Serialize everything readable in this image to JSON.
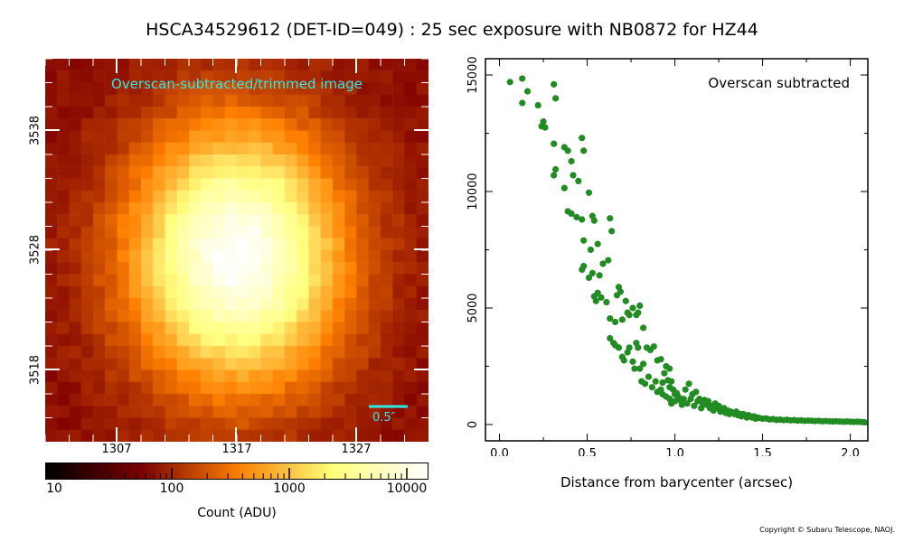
{
  "title": "HSCA34529612 (DET-ID=049) :  25 sec exposure with NB0872 for HZ44",
  "copyright": "Copyright © Subaru Telescope, NAOJ.",
  "image_panel": {
    "label": "Overscan-subtracted/trimmed image",
    "x_ticks": [
      "1307",
      "1317",
      "1327"
    ],
    "y_ticks": [
      "3538",
      "3528",
      "3518"
    ],
    "scale_bar_label": "0.5″",
    "accent_color": "#2fe8e8"
  },
  "colorbar": {
    "labels": [
      "10",
      "100",
      "1000",
      "10000"
    ],
    "title": "Count (ADU)",
    "scale": "log"
  },
  "chart_data": {
    "type": "scatter",
    "annotation": "Overscan subtracted",
    "xlabel": "Distance from barycenter (arcsec)",
    "ylabel": "",
    "xlim": [
      -0.08,
      2.1
    ],
    "ylim": [
      -700,
      15700
    ],
    "x_ticks": [
      0.0,
      0.5,
      1.0,
      1.5,
      2.0
    ],
    "x_tick_labels": [
      "0.0",
      "0.5",
      "1.0",
      "1.5",
      "2.0"
    ],
    "y_ticks": [
      0,
      5000,
      10000,
      15000
    ],
    "y_tick_labels": [
      "0",
      "5000",
      "10000",
      "15000"
    ],
    "point_color": "#228b22",
    "points": [
      [
        0.06,
        14700
      ],
      [
        0.13,
        14850
      ],
      [
        0.13,
        13800
      ],
      [
        0.16,
        14300
      ],
      [
        0.22,
        13700
      ],
      [
        0.24,
        12800
      ],
      [
        0.25,
        13000
      ],
      [
        0.26,
        12750
      ],
      [
        0.31,
        14600
      ],
      [
        0.32,
        14000
      ],
      [
        0.31,
        12050
      ],
      [
        0.31,
        10700
      ],
      [
        0.32,
        10950
      ],
      [
        0.37,
        10150
      ],
      [
        0.37,
        11900
      ],
      [
        0.39,
        11750
      ],
      [
        0.41,
        11300
      ],
      [
        0.42,
        10700
      ],
      [
        0.45,
        10450
      ],
      [
        0.47,
        12300
      ],
      [
        0.48,
        11750
      ],
      [
        0.51,
        9950
      ],
      [
        0.39,
        9150
      ],
      [
        0.41,
        9050
      ],
      [
        0.44,
        8900
      ],
      [
        0.47,
        8800
      ],
      [
        0.48,
        7900
      ],
      [
        0.53,
        8950
      ],
      [
        0.54,
        8750
      ],
      [
        0.56,
        7750
      ],
      [
        0.52,
        7500
      ],
      [
        0.47,
        6650
      ],
      [
        0.48,
        6800
      ],
      [
        0.51,
        6300
      ],
      [
        0.53,
        6500
      ],
      [
        0.57,
        6400
      ],
      [
        0.59,
        6900
      ],
      [
        0.62,
        7050
      ],
      [
        0.63,
        8850
      ],
      [
        0.64,
        8300
      ],
      [
        0.54,
        5500
      ],
      [
        0.55,
        5300
      ],
      [
        0.56,
        5650
      ],
      [
        0.58,
        5450
      ],
      [
        0.61,
        5250
      ],
      [
        0.63,
        4550
      ],
      [
        0.66,
        4400
      ],
      [
        0.67,
        5550
      ],
      [
        0.68,
        5900
      ],
      [
        0.69,
        5700
      ],
      [
        0.7,
        4500
      ],
      [
        0.72,
        5300
      ],
      [
        0.73,
        4800
      ],
      [
        0.74,
        4700
      ],
      [
        0.76,
        5000
      ],
      [
        0.78,
        4700
      ],
      [
        0.8,
        5100
      ],
      [
        0.82,
        4150
      ],
      [
        0.79,
        4800
      ],
      [
        0.63,
        3700
      ],
      [
        0.65,
        3500
      ],
      [
        0.66,
        3400
      ],
      [
        0.68,
        3300
      ],
      [
        0.7,
        2900
      ],
      [
        0.71,
        2750
      ],
      [
        0.73,
        3100
      ],
      [
        0.74,
        3300
      ],
      [
        0.76,
        2700
      ],
      [
        0.78,
        3500
      ],
      [
        0.79,
        3300
      ],
      [
        0.8,
        2400
      ],
      [
        0.82,
        2600
      ],
      [
        0.84,
        3300
      ],
      [
        0.86,
        3200
      ],
      [
        0.88,
        3350
      ],
      [
        0.9,
        2750
      ],
      [
        0.92,
        2800
      ],
      [
        0.95,
        2500
      ],
      [
        0.97,
        2400
      ],
      [
        0.77,
        2400
      ],
      [
        0.81,
        1850
      ],
      [
        0.83,
        1750
      ],
      [
        0.85,
        2050
      ],
      [
        0.87,
        1600
      ],
      [
        0.89,
        1850
      ],
      [
        0.9,
        1400
      ],
      [
        0.92,
        1500
      ],
      [
        0.93,
        1800
      ],
      [
        0.94,
        2200
      ],
      [
        0.96,
        1900
      ],
      [
        0.97,
        1600
      ],
      [
        0.98,
        1850
      ],
      [
        0.99,
        1500
      ],
      [
        1.0,
        1300
      ],
      [
        0.93,
        1300
      ],
      [
        0.95,
        1200
      ],
      [
        0.97,
        1100
      ],
      [
        0.98,
        900
      ],
      [
        1.0,
        1000
      ],
      [
        1.01,
        1350
      ],
      [
        1.02,
        1200
      ],
      [
        1.03,
        1050
      ],
      [
        1.04,
        850
      ],
      [
        1.05,
        1100
      ],
      [
        1.06,
        1500
      ],
      [
        1.07,
        900
      ],
      [
        1.08,
        1750
      ],
      [
        1.09,
        1100
      ],
      [
        1.1,
        1300
      ],
      [
        1.11,
        800
      ],
      [
        1.12,
        1400
      ],
      [
        1.13,
        1000
      ],
      [
        1.14,
        1100
      ],
      [
        1.15,
        700
      ],
      [
        1.16,
        900
      ],
      [
        1.17,
        1050
      ],
      [
        1.18,
        850
      ],
      [
        1.19,
        1000
      ],
      [
        1.2,
        700
      ],
      [
        1.21,
        800
      ],
      [
        1.22,
        600
      ],
      [
        1.23,
        900
      ],
      [
        1.24,
        700
      ],
      [
        1.25,
        800
      ],
      [
        1.26,
        550
      ],
      [
        1.27,
        650
      ],
      [
        1.28,
        700
      ],
      [
        1.29,
        500
      ],
      [
        1.3,
        600
      ],
      [
        1.31,
        450
      ],
      [
        1.32,
        550
      ],
      [
        1.33,
        500
      ],
      [
        1.34,
        450
      ],
      [
        1.35,
        550
      ],
      [
        1.36,
        400
      ],
      [
        1.37,
        450
      ],
      [
        1.38,
        350
      ],
      [
        1.39,
        450
      ],
      [
        1.4,
        400
      ],
      [
        1.41,
        300
      ],
      [
        1.42,
        400
      ],
      [
        1.43,
        350
      ],
      [
        1.44,
        300
      ],
      [
        1.45,
        350
      ],
      [
        1.46,
        250
      ],
      [
        1.47,
        300
      ],
      [
        1.48,
        280
      ],
      [
        1.5,
        250
      ],
      [
        1.52,
        260
      ],
      [
        1.54,
        220
      ],
      [
        1.56,
        230
      ],
      [
        1.58,
        200
      ],
      [
        1.6,
        210
      ],
      [
        1.62,
        190
      ],
      [
        1.64,
        200
      ],
      [
        1.66,
        180
      ],
      [
        1.68,
        190
      ],
      [
        1.7,
        170
      ],
      [
        1.72,
        180
      ],
      [
        1.74,
        160
      ],
      [
        1.76,
        170
      ],
      [
        1.78,
        160
      ],
      [
        1.8,
        150
      ],
      [
        1.82,
        160
      ],
      [
        1.84,
        140
      ],
      [
        1.86,
        150
      ],
      [
        1.88,
        140
      ],
      [
        1.9,
        130
      ],
      [
        1.92,
        140
      ],
      [
        1.94,
        130
      ],
      [
        1.96,
        120
      ],
      [
        1.98,
        130
      ],
      [
        2.0,
        120
      ],
      [
        2.02,
        110
      ],
      [
        2.04,
        120
      ],
      [
        2.06,
        110
      ],
      [
        2.08,
        100
      ]
    ]
  }
}
